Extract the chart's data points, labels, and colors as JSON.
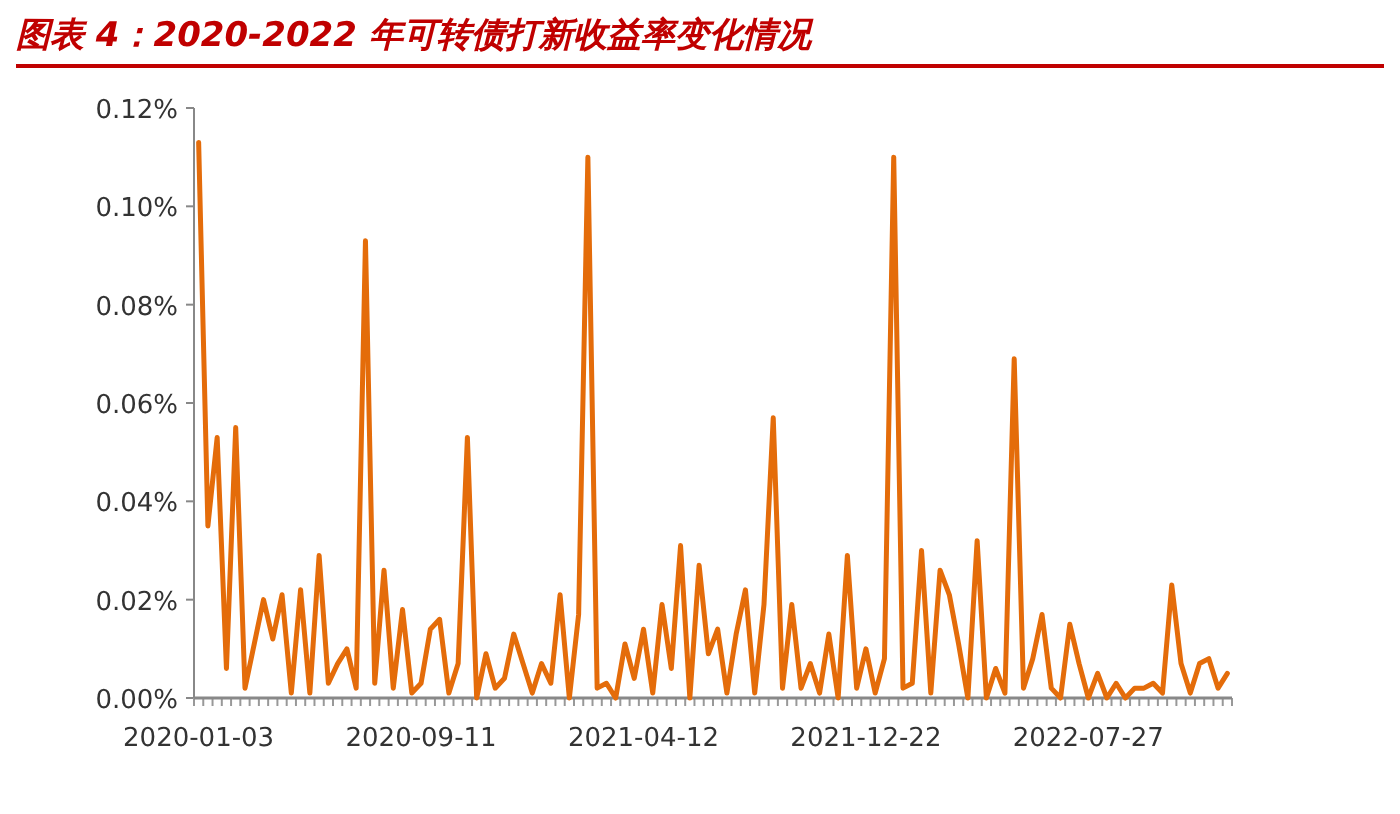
{
  "chart_data": {
    "type": "line",
    "title": "图表 4：2020-2022 年可转债打新收益率变化情况",
    "categories": [
      "2020-01-03",
      null,
      null,
      null,
      null,
      null,
      null,
      null,
      null,
      null,
      null,
      null,
      null,
      null,
      null,
      null,
      null,
      null,
      null,
      null,
      null,
      null,
      null,
      null,
      "2020-09-11",
      null,
      null,
      null,
      null,
      null,
      null,
      null,
      null,
      null,
      null,
      null,
      null,
      null,
      null,
      null,
      null,
      null,
      null,
      null,
      null,
      null,
      null,
      null,
      "2021-04-12",
      null,
      null,
      null,
      null,
      null,
      null,
      null,
      null,
      null,
      null,
      null,
      null,
      null,
      null,
      null,
      null,
      null,
      null,
      null,
      null,
      null,
      null,
      null,
      "2021-12-22",
      null,
      null,
      null,
      null,
      null,
      null,
      null,
      null,
      null,
      null,
      null,
      null,
      null,
      null,
      null,
      null,
      null,
      null,
      null,
      null,
      null,
      null,
      null,
      "2022-07-27",
      null,
      null,
      null,
      null,
      null,
      null,
      null,
      null,
      null,
      null,
      null,
      null,
      null,
      null,
      null
    ],
    "series": [
      {
        "color": "#e46c0a",
        "values": [
          0.113,
          0.035,
          0.053,
          0.006,
          0.055,
          0.002,
          0.011,
          0.02,
          0.012,
          0.021,
          0.001,
          0.022,
          0.001,
          0.029,
          0.003,
          0.007,
          0.01,
          0.002,
          0.093,
          0.003,
          0.026,
          0.002,
          0.018,
          0.001,
          0.003,
          0.014,
          0.016,
          0.001,
          0.007,
          0.053,
          0.0,
          0.009,
          0.002,
          0.004,
          0.013,
          0.007,
          0.001,
          0.007,
          0.003,
          0.021,
          0.0,
          0.017,
          0.11,
          0.002,
          0.003,
          0.0,
          0.011,
          0.004,
          0.014,
          0.001,
          0.019,
          0.006,
          0.031,
          0.0,
          0.027,
          0.009,
          0.014,
          0.001,
          0.013,
          0.022,
          0.001,
          0.019,
          0.057,
          0.002,
          0.019,
          0.002,
          0.007,
          0.001,
          0.013,
          0.0,
          0.029,
          0.002,
          0.01,
          0.001,
          0.008,
          0.11,
          0.002,
          0.003,
          0.03,
          0.001,
          0.026,
          0.021,
          0.011,
          0.0,
          0.032,
          0.0,
          0.006,
          0.001,
          0.069,
          0.002,
          0.008,
          0.017,
          0.002,
          0.0,
          0.015,
          0.007,
          0.0,
          0.005,
          0.0,
          0.003,
          0.0,
          0.002,
          0.002,
          0.003,
          0.001,
          0.023,
          0.007,
          0.001,
          0.007,
          0.008,
          0.002,
          0.005
        ]
      }
    ],
    "ylim": [
      0,
      0.12
    ],
    "yticks": [
      {
        "value": 0,
        "label": "0.00%"
      },
      {
        "value": 0.02,
        "label": "0.02%"
      },
      {
        "value": 0.04,
        "label": "0.04%"
      },
      {
        "value": 0.06,
        "label": "0.06%"
      },
      {
        "value": 0.08,
        "label": "0.08%"
      },
      {
        "value": 0.1,
        "label": "0.10%"
      },
      {
        "value": 0.12,
        "label": "0.12%"
      }
    ],
    "line_style": "solid"
  }
}
